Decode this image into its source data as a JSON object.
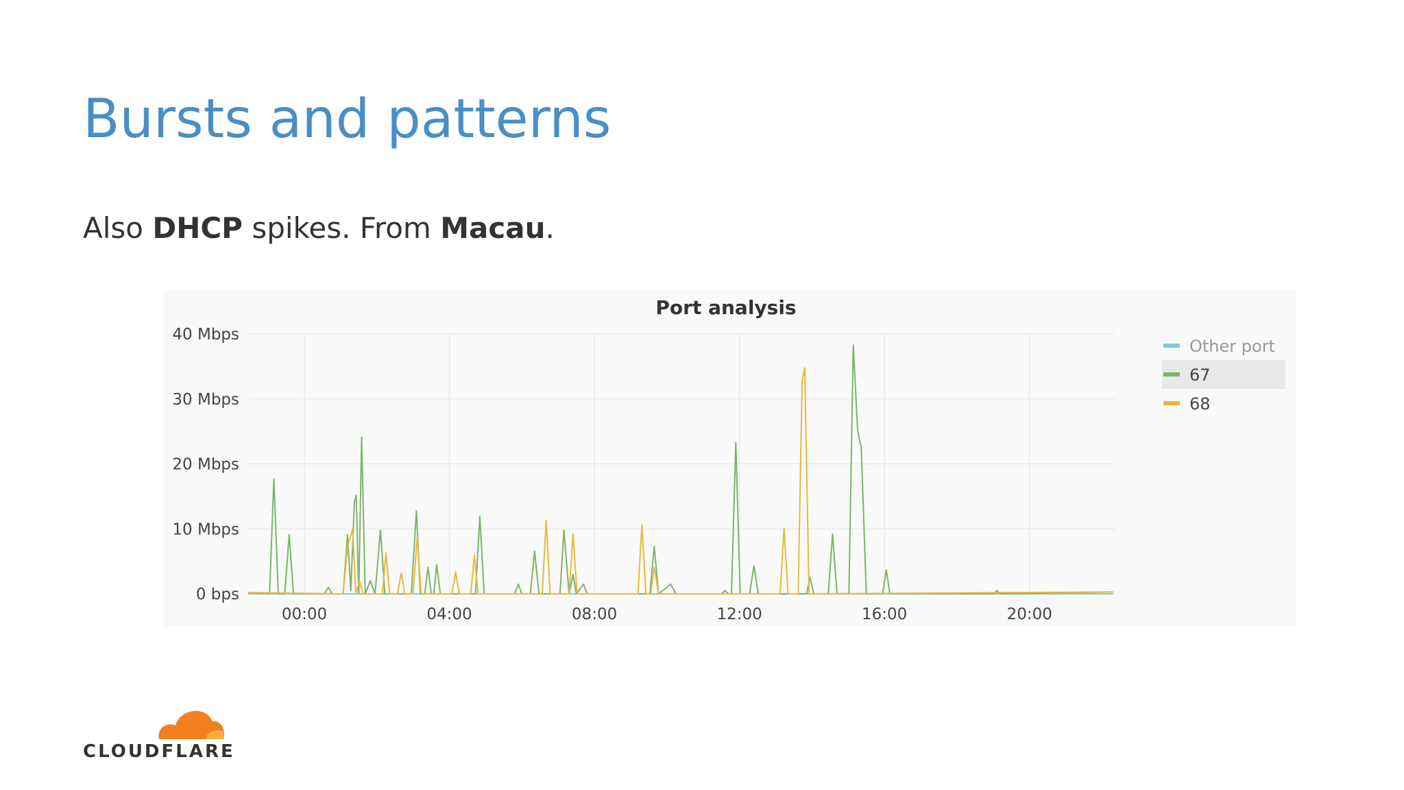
{
  "slide": {
    "title": "Bursts and patterns",
    "subtitle": [
      "Also ",
      "DHCP",
      " spikes. From ",
      "Macau",
      "."
    ],
    "logo": "CLOUDFLARE"
  },
  "chart_data": {
    "type": "line",
    "title": "Port analysis",
    "xlim": [
      -1.55,
      22.35
    ],
    "xticks": [
      {
        "value": 0,
        "label": "00:00"
      },
      {
        "value": 4,
        "label": "04:00"
      },
      {
        "value": 8,
        "label": "08:00"
      },
      {
        "value": 12,
        "label": "12:00"
      },
      {
        "value": 16,
        "label": "16:00"
      },
      {
        "value": 20,
        "label": "20:00"
      }
    ],
    "ylim": [
      0,
      40
    ],
    "yticks": [
      {
        "value": 0,
        "label": "0 bps"
      },
      {
        "value": 10,
        "label": "10 Mbps"
      },
      {
        "value": 20,
        "label": "20 Mbps"
      },
      {
        "value": 30,
        "label": "30 Mbps"
      },
      {
        "value": 40,
        "label": "40 Mbps"
      }
    ],
    "grid": true,
    "legend": "right",
    "series": [
      {
        "name": "Other port",
        "color": "#82c8d6",
        "x": [
          -1.55,
          22.3
        ],
        "values": [
          0,
          0
        ]
      },
      {
        "name": "67",
        "color": "#7eb26d",
        "x": [
          -1.55,
          -0.96,
          -0.84,
          -0.72,
          -0.54,
          -0.42,
          -0.3,
          0.55,
          0.66,
          0.77,
          1.07,
          1.19,
          1.28,
          1.38,
          1.43,
          1.5,
          1.58,
          1.68,
          1.82,
          1.95,
          2.1,
          2.22,
          2.95,
          3.09,
          3.2,
          3.32,
          3.41,
          3.5,
          3.57,
          3.65,
          3.75,
          4.72,
          4.84,
          4.96,
          5.8,
          5.9,
          6.0,
          6.23,
          6.35,
          6.47,
          7.05,
          7.16,
          7.3,
          7.41,
          7.5,
          7.7,
          7.8,
          9.53,
          9.65,
          9.77,
          10.0,
          10.1,
          10.25,
          11.5,
          11.6,
          11.7,
          11.78,
          11.9,
          12.02,
          12.28,
          12.4,
          12.52,
          13.85,
          13.95,
          14.05,
          14.45,
          14.57,
          14.69,
          15.02,
          15.14,
          15.26,
          15.36,
          15.5,
          15.95,
          16.05,
          16.15,
          19.0,
          19.1,
          19.2,
          22.3
        ],
        "values": [
          0.2,
          0,
          17.7,
          0,
          0,
          9.1,
          0,
          0,
          1,
          0,
          0,
          9.1,
          0.5,
          14.2,
          15.2,
          0,
          24.1,
          0,
          2,
          0,
          9.8,
          0,
          0,
          12.8,
          0,
          0,
          4.1,
          0,
          0,
          4.5,
          0,
          0,
          11.9,
          0,
          0,
          1.5,
          0,
          0,
          6.6,
          0,
          0,
          9.8,
          0,
          3,
          0,
          1.5,
          0,
          0,
          7.3,
          0,
          1,
          1.5,
          0,
          0,
          0.5,
          0,
          0,
          23.3,
          0,
          0,
          4.3,
          0,
          0,
          2.5,
          0,
          0,
          9.2,
          0,
          0,
          38.3,
          25.2,
          22.5,
          0,
          0,
          3.7,
          0,
          0,
          0.5,
          0,
          0.3
        ]
      },
      {
        "name": "68",
        "color": "#eab839",
        "x": [
          -1.55,
          1.07,
          1.19,
          1.33,
          1.42,
          1.52,
          1.62,
          2.15,
          2.25,
          2.35,
          2.57,
          2.67,
          2.77,
          3.0,
          3.11,
          3.22,
          4.07,
          4.17,
          4.27,
          4.59,
          4.69,
          4.79,
          6.56,
          6.67,
          6.78,
          7.3,
          7.41,
          7.52,
          9.2,
          9.31,
          9.42,
          9.55,
          9.65,
          9.77,
          13.12,
          13.23,
          13.34,
          13.62,
          13.73,
          13.8,
          13.92,
          22.3
        ],
        "values": [
          0.2,
          0,
          7.3,
          10,
          0,
          2,
          0,
          0,
          6.3,
          0,
          0,
          3.2,
          0,
          0,
          8.7,
          0,
          0,
          3.4,
          0,
          0,
          5.9,
          0,
          0,
          11.3,
          0,
          0,
          9.2,
          0,
          0,
          10.6,
          0,
          0,
          4.1,
          0,
          0,
          10.1,
          0,
          0,
          32.8,
          34.8,
          0,
          0.3
        ]
      }
    ]
  }
}
